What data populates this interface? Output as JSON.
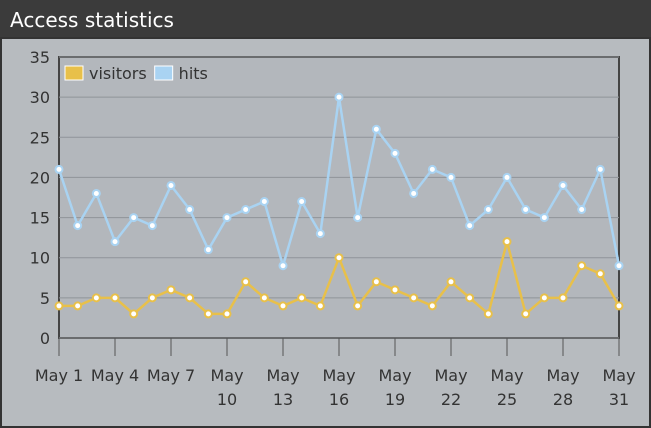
{
  "window_title": "Access statistics",
  "chart_data": {
    "type": "line",
    "categories": [
      "May 1",
      null,
      null,
      "May 4",
      null,
      null,
      "May 7",
      null,
      null,
      "May\n10",
      null,
      null,
      "May\n13",
      null,
      null,
      "May\n16",
      null,
      null,
      "May\n19",
      null,
      null,
      "May\n22",
      null,
      null,
      "May\n25",
      null,
      null,
      "May\n28",
      null,
      null,
      "May\n31"
    ],
    "series": [
      {
        "name": "visitors",
        "color": "#e8c04a",
        "values": [
          4,
          4,
          5,
          5,
          3,
          5,
          6,
          5,
          3,
          3,
          7,
          5,
          4,
          5,
          4,
          10,
          4,
          7,
          6,
          5,
          4,
          7,
          5,
          3,
          12,
          3,
          5,
          5,
          9,
          8,
          4
        ]
      },
      {
        "name": "hits",
        "color": "#a9d3f2",
        "values": [
          21,
          14,
          18,
          12,
          15,
          14,
          19,
          16,
          11,
          15,
          16,
          17,
          9,
          17,
          13,
          30,
          15,
          26,
          23,
          18,
          21,
          20,
          14,
          16,
          20,
          16,
          15,
          19,
          16,
          21,
          9
        ]
      }
    ],
    "ylim": [
      0,
      35
    ],
    "yticks": [
      0,
      5,
      10,
      15,
      20,
      25,
      30,
      35
    ],
    "grid": true,
    "legend": "top-left"
  }
}
